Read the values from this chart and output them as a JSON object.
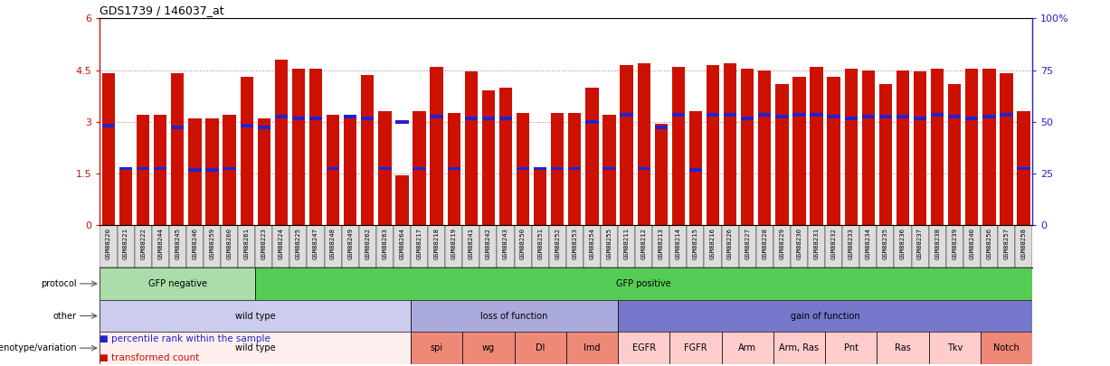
{
  "title": "GDS1739 / 146037_at",
  "samples": [
    "GSM88220",
    "GSM88221",
    "GSM88222",
    "GSM88244",
    "GSM88245",
    "GSM88246",
    "GSM88259",
    "GSM88260",
    "GSM88261",
    "GSM88223",
    "GSM88224",
    "GSM88225",
    "GSM88247",
    "GSM88248",
    "GSM88249",
    "GSM88262",
    "GSM88263",
    "GSM88264",
    "GSM88217",
    "GSM88218",
    "GSM88219",
    "GSM88241",
    "GSM88242",
    "GSM88243",
    "GSM88250",
    "GSM88251",
    "GSM88252",
    "GSM88253",
    "GSM88254",
    "GSM88255",
    "GSM88211",
    "GSM88212",
    "GSM88213",
    "GSM88214",
    "GSM88215",
    "GSM88216",
    "GSM88226",
    "GSM88227",
    "GSM88228",
    "GSM88229",
    "GSM88230",
    "GSM88231",
    "GSM88232",
    "GSM88233",
    "GSM88234",
    "GSM88235",
    "GSM88236",
    "GSM88237",
    "GSM88238",
    "GSM88239",
    "GSM88240",
    "GSM88256",
    "GSM88257",
    "GSM88258"
  ],
  "bar_values": [
    4.4,
    1.6,
    3.2,
    3.2,
    4.4,
    3.1,
    3.1,
    3.2,
    4.3,
    3.1,
    4.8,
    4.55,
    4.55,
    3.2,
    3.2,
    4.35,
    3.3,
    1.45,
    3.3,
    4.6,
    3.25,
    4.45,
    3.9,
    4.0,
    3.25,
    1.65,
    3.25,
    3.25,
    4.0,
    3.2,
    4.65,
    4.7,
    2.95,
    4.6,
    3.3,
    4.65,
    4.7,
    4.55,
    4.5,
    4.1,
    4.3,
    4.6,
    4.3,
    4.55,
    4.5,
    4.1,
    4.5,
    4.45,
    4.55,
    4.1,
    4.55,
    4.55,
    4.4,
    3.3
  ],
  "percentile_values": [
    2.9,
    1.65,
    1.65,
    1.65,
    2.85,
    1.6,
    1.6,
    1.65,
    2.9,
    2.85,
    3.15,
    3.1,
    3.1,
    1.65,
    3.15,
    3.1,
    1.65,
    3.0,
    1.65,
    3.15,
    1.65,
    3.1,
    3.1,
    3.1,
    1.65,
    1.65,
    1.65,
    1.65,
    3.0,
    1.65,
    3.2,
    1.65,
    2.85,
    3.2,
    1.6,
    3.2,
    3.2,
    3.1,
    3.2,
    3.15,
    3.2,
    3.2,
    3.15,
    3.1,
    3.15,
    3.15,
    3.15,
    3.1,
    3.2,
    3.15,
    3.1,
    3.15,
    3.2,
    1.65
  ],
  "ylim": [
    0,
    6
  ],
  "yticks": [
    0,
    1.5,
    3.0,
    4.5,
    6.0
  ],
  "yticklabels": [
    "0",
    "1.5",
    "3",
    "4.5",
    "6"
  ],
  "right_ytick_vals": [
    0,
    1.5,
    3.0,
    4.5,
    6.0
  ],
  "right_yticklabels": [
    "0",
    "25",
    "50",
    "75",
    "100%"
  ],
  "bar_color": "#cc1100",
  "percentile_color": "#2222cc",
  "dotted_line_color": "#888888",
  "xtick_bg_color": "#dddddd",
  "protocol_row": {
    "label": "protocol",
    "segments": [
      {
        "text": "GFP negative",
        "start": 0,
        "end": 9,
        "color": "#aaddaa"
      },
      {
        "text": "GFP positive",
        "start": 9,
        "end": 54,
        "color": "#55cc55"
      }
    ]
  },
  "other_row": {
    "label": "other",
    "segments": [
      {
        "text": "wild type",
        "start": 0,
        "end": 18,
        "color": "#ccccee"
      },
      {
        "text": "loss of function",
        "start": 18,
        "end": 30,
        "color": "#aaaadd"
      },
      {
        "text": "gain of function",
        "start": 30,
        "end": 54,
        "color": "#7777cc"
      }
    ]
  },
  "genotype_row": {
    "label": "genotype/variation",
    "segments": [
      {
        "text": "wild type",
        "start": 0,
        "end": 18,
        "color": "#ffeeee"
      },
      {
        "text": "spi",
        "start": 18,
        "end": 21,
        "color": "#ee8877"
      },
      {
        "text": "wg",
        "start": 21,
        "end": 24,
        "color": "#ee8877"
      },
      {
        "text": "Dl",
        "start": 24,
        "end": 27,
        "color": "#ee8877"
      },
      {
        "text": "Imd",
        "start": 27,
        "end": 30,
        "color": "#ee8877"
      },
      {
        "text": "EGFR",
        "start": 30,
        "end": 33,
        "color": "#ffcccc"
      },
      {
        "text": "FGFR",
        "start": 33,
        "end": 36,
        "color": "#ffcccc"
      },
      {
        "text": "Arm",
        "start": 36,
        "end": 39,
        "color": "#ffcccc"
      },
      {
        "text": "Arm, Ras",
        "start": 39,
        "end": 42,
        "color": "#ffcccc"
      },
      {
        "text": "Pnt",
        "start": 42,
        "end": 45,
        "color": "#ffcccc"
      },
      {
        "text": "Ras",
        "start": 45,
        "end": 48,
        "color": "#ffcccc"
      },
      {
        "text": "Tkv",
        "start": 48,
        "end": 51,
        "color": "#ffcccc"
      },
      {
        "text": "Notch",
        "start": 51,
        "end": 54,
        "color": "#ee8877"
      }
    ]
  },
  "legend_items": [
    {
      "label": "transformed count",
      "color": "#cc1100"
    },
    {
      "label": "percentile rank within the sample",
      "color": "#2222cc"
    }
  ]
}
